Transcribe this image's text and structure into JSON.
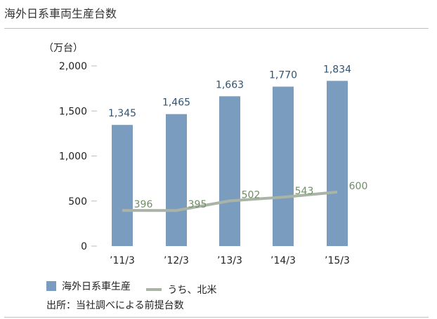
{
  "title": "海外日系車両生産台数",
  "source_note": "出所：当社調べによる前提台数",
  "chart_data": {
    "type": "bar",
    "title": "海外日系車両生産台数",
    "ylabel": "（万台）",
    "xlabel": "",
    "ylim": [
      0,
      2000
    ],
    "yticks": [
      "2,000",
      "1,500",
      "1,000",
      "500",
      "0"
    ],
    "ytick_values": [
      2000,
      1500,
      1000,
      500,
      0
    ],
    "categories": [
      "’11/3",
      "’12/3",
      "’13/3",
      "’14/3",
      "’15/3"
    ],
    "series": [
      {
        "name": "海外日系車生産",
        "type": "bar",
        "values": [
          1345,
          1465,
          1663,
          1770,
          1834
        ],
        "labels": [
          "1,345",
          "1,465",
          "1,663",
          "1,770",
          "1,834"
        ],
        "color": "#7a9dbf",
        "label_color": "#2f5473"
      },
      {
        "name": "うち、北米",
        "type": "line",
        "values": [
          396,
          395,
          502,
          543,
          600
        ],
        "labels": [
          "396",
          "395",
          "502",
          "543",
          "600"
        ],
        "color": "#a9b3a6",
        "label_color": "#6f8e63"
      }
    ],
    "grid": false,
    "legend": "bottom-left"
  }
}
